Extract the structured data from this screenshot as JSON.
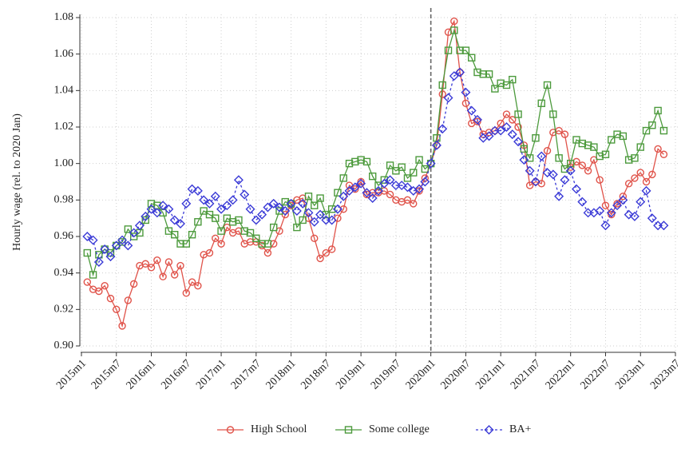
{
  "chart_data": {
    "type": "line",
    "ylabel": "Hourly wage (rel. to 2020 Jan)",
    "x": [
      "2015m2",
      "2015m3",
      "2015m4",
      "2015m5",
      "2015m6",
      "2015m7",
      "2015m8",
      "2015m9",
      "2015m10",
      "2015m11",
      "2015m12",
      "2016m1",
      "2016m2",
      "2016m3",
      "2016m4",
      "2016m5",
      "2016m6",
      "2016m7",
      "2016m8",
      "2016m9",
      "2016m10",
      "2016m11",
      "2016m12",
      "2017m1",
      "2017m2",
      "2017m3",
      "2017m4",
      "2017m5",
      "2017m6",
      "2017m7",
      "2017m8",
      "2017m9",
      "2017m10",
      "2017m11",
      "2017m12",
      "2018m1",
      "2018m2",
      "2018m3",
      "2018m4",
      "2018m5",
      "2018m6",
      "2018m7",
      "2018m8",
      "2018m9",
      "2018m10",
      "2018m11",
      "2018m12",
      "2019m1",
      "2019m2",
      "2019m3",
      "2019m4",
      "2019m5",
      "2019m6",
      "2019m7",
      "2019m8",
      "2019m9",
      "2019m10",
      "2019m11",
      "2019m12",
      "2020m1",
      "2020m2",
      "2020m3",
      "2020m4",
      "2020m5",
      "2020m6",
      "2020m7",
      "2020m8",
      "2020m9",
      "2020m10",
      "2020m11",
      "2020m12",
      "2021m1",
      "2021m2",
      "2021m3",
      "2021m4",
      "2021m5",
      "2021m6",
      "2021m7",
      "2021m8",
      "2021m9",
      "2021m10",
      "2021m11",
      "2021m12",
      "2022m1",
      "2022m2",
      "2022m3",
      "2022m4",
      "2022m5",
      "2022m6",
      "2022m7",
      "2022m8",
      "2022m9",
      "2022m10",
      "2022m11",
      "2022m12",
      "2023m1",
      "2023m2",
      "2023m3",
      "2023m4",
      "2023m5"
    ],
    "series": [
      {
        "name": "High School",
        "color": "#e0534a",
        "marker": "circle",
        "dash": false,
        "values": [
          0.935,
          0.931,
          0.93,
          0.933,
          0.926,
          0.92,
          0.911,
          0.925,
          0.934,
          0.944,
          0.945,
          0.943,
          0.947,
          0.938,
          0.946,
          0.939,
          0.944,
          0.929,
          0.935,
          0.933,
          0.95,
          0.951,
          0.959,
          0.956,
          0.965,
          0.962,
          0.963,
          0.956,
          0.957,
          0.957,
          0.955,
          0.951,
          0.956,
          0.963,
          0.972,
          0.977,
          0.98,
          0.981,
          0.97,
          0.959,
          0.948,
          0.951,
          0.953,
          0.97,
          0.975,
          0.988,
          0.986,
          0.99,
          0.983,
          0.984,
          0.984,
          0.985,
          0.983,
          0.98,
          0.979,
          0.98,
          0.978,
          0.985,
          0.992,
          1.0,
          1.01,
          1.038,
          1.072,
          1.078,
          1.05,
          1.033,
          1.022,
          1.023,
          1.016,
          1.017,
          1.018,
          1.022,
          1.027,
          1.024,
          1.02,
          1.01,
          0.988,
          0.99,
          0.989,
          1.007,
          1.017,
          1.018,
          1.016,
          0.998,
          1.001,
          0.999,
          0.996,
          1.002,
          0.991,
          0.977,
          0.972,
          0.978,
          0.982,
          0.989,
          0.992,
          0.995,
          0.99,
          0.994,
          1.008,
          1.005
        ]
      },
      {
        "name": "Some college",
        "color": "#4c9a3c",
        "marker": "square",
        "dash": false,
        "values": [
          0.951,
          0.939,
          0.95,
          0.953,
          0.951,
          0.955,
          0.957,
          0.964,
          0.96,
          0.962,
          0.969,
          0.978,
          0.977,
          0.973,
          0.963,
          0.961,
          0.956,
          0.956,
          0.961,
          0.968,
          0.974,
          0.972,
          0.97,
          0.963,
          0.97,
          0.968,
          0.969,
          0.963,
          0.962,
          0.959,
          0.956,
          0.956,
          0.965,
          0.974,
          0.979,
          0.978,
          0.965,
          0.969,
          0.982,
          0.977,
          0.981,
          0.972,
          0.975,
          0.984,
          0.992,
          1.0,
          1.001,
          1.002,
          1.001,
          0.993,
          0.988,
          0.991,
          0.999,
          0.996,
          0.998,
          0.992,
          0.995,
          1.002,
          0.997,
          1.0,
          1.014,
          1.043,
          1.062,
          1.073,
          1.062,
          1.062,
          1.058,
          1.05,
          1.049,
          1.049,
          1.041,
          1.044,
          1.043,
          1.046,
          1.027,
          1.008,
          1.003,
          1.014,
          1.033,
          1.043,
          1.027,
          1.003,
          0.997,
          1.0,
          1.013,
          1.011,
          1.01,
          1.009,
          1.004,
          1.005,
          1.013,
          1.016,
          1.015,
          1.002,
          1.003,
          1.009,
          1.018,
          1.021,
          1.029,
          1.018
        ]
      },
      {
        "name": "BA+",
        "color": "#3a3ad6",
        "marker": "diamond",
        "dash": true,
        "values": [
          0.96,
          0.958,
          0.946,
          0.953,
          0.949,
          0.955,
          0.958,
          0.955,
          0.962,
          0.966,
          0.971,
          0.975,
          0.973,
          0.977,
          0.975,
          0.969,
          0.967,
          0.978,
          0.986,
          0.985,
          0.98,
          0.978,
          0.982,
          0.975,
          0.977,
          0.98,
          0.991,
          0.983,
          0.975,
          0.969,
          0.972,
          0.976,
          0.978,
          0.976,
          0.974,
          0.978,
          0.974,
          0.978,
          0.973,
          0.968,
          0.972,
          0.969,
          0.969,
          0.975,
          0.982,
          0.985,
          0.987,
          0.989,
          0.984,
          0.981,
          0.985,
          0.989,
          0.991,
          0.988,
          0.988,
          0.987,
          0.985,
          0.986,
          0.99,
          1.0,
          1.01,
          1.019,
          1.036,
          1.048,
          1.05,
          1.039,
          1.029,
          1.024,
          1.014,
          1.015,
          1.018,
          1.018,
          1.02,
          1.016,
          1.012,
          1.002,
          0.996,
          0.99,
          1.004,
          0.995,
          0.994,
          0.982,
          0.991,
          0.996,
          0.986,
          0.979,
          0.973,
          0.973,
          0.974,
          0.966,
          0.973,
          0.977,
          0.98,
          0.972,
          0.971,
          0.979,
          0.985,
          0.97,
          0.966,
          0.966
        ]
      }
    ],
    "xlim": [
      "2015m1",
      "2023m7"
    ],
    "xticks": [
      "2015m1",
      "2015m7",
      "2016m1",
      "2016m7",
      "2017m1",
      "2017m7",
      "2018m1",
      "2018m7",
      "2019m1",
      "2019m7",
      "2020m1",
      "2020m7",
      "2021m1",
      "2021m7",
      "2022m1",
      "2022m7",
      "2023m1",
      "2023m7"
    ],
    "ylim": [
      0.9,
      1.08
    ],
    "yticks": [
      {
        "value": 0.9,
        "label": "0.90"
      },
      0.92,
      0.94,
      0.96,
      0.98,
      {
        "value": 1,
        "label": "1.00"
      },
      1.02,
      1.04,
      1.06,
      1.08
    ],
    "vline": "2020m1",
    "grid": true,
    "legend": "bottom"
  }
}
